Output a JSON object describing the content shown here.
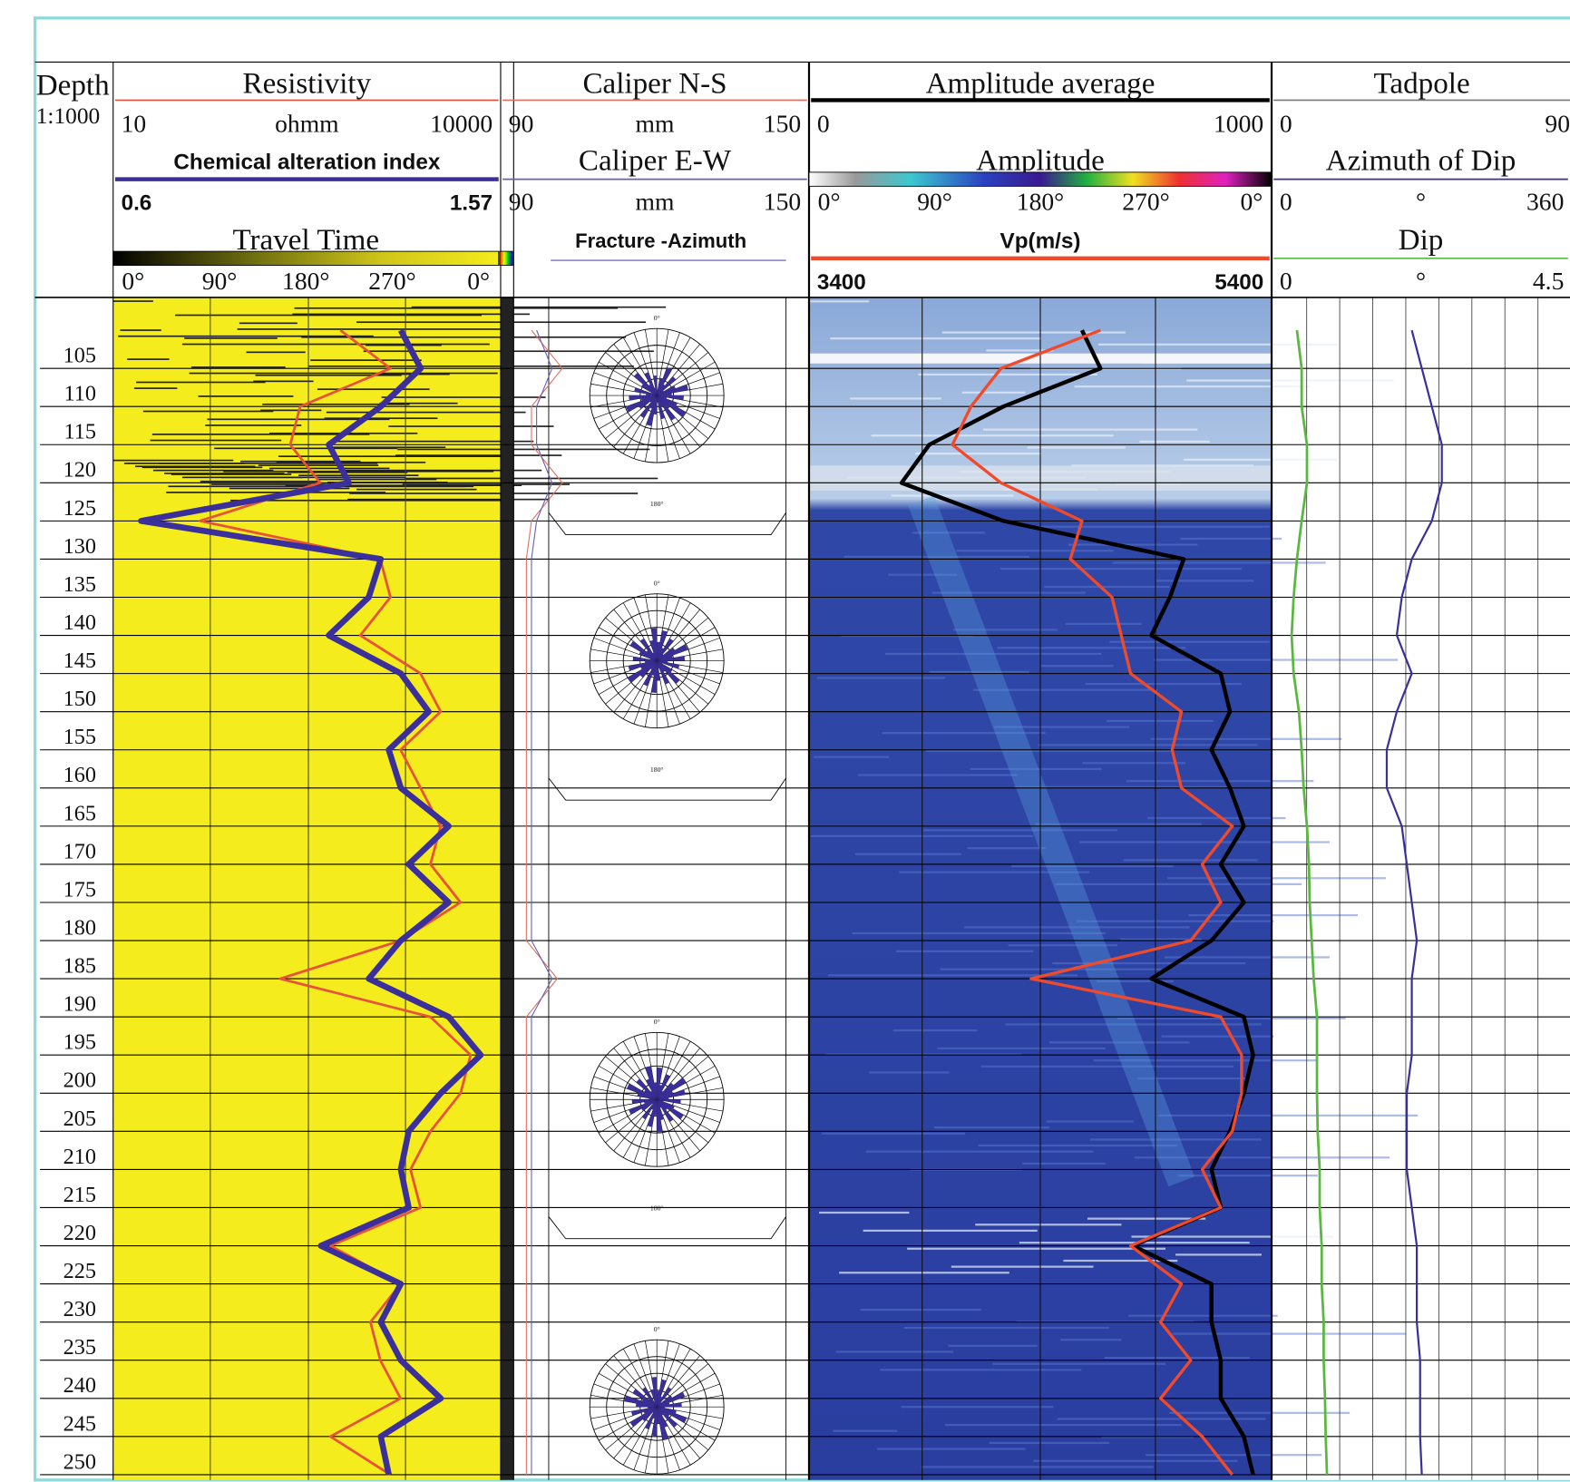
{
  "chart_data": {
    "type": "well_log",
    "depth": {
      "title": "Depth",
      "scale": "1:1000",
      "ylim": [
        95.7,
        250.7
      ],
      "yticks": [
        105,
        110,
        115,
        120,
        125,
        130,
        135,
        140,
        145,
        150,
        155,
        160,
        165,
        170,
        175,
        180,
        185,
        190,
        195,
        200,
        205,
        210,
        215,
        220,
        225,
        230,
        235,
        240,
        245,
        250
      ]
    },
    "depths": [
      100,
      105,
      110,
      115,
      120,
      125,
      130,
      135,
      140,
      145,
      150,
      155,
      160,
      165,
      170,
      175,
      180,
      185,
      190,
      195,
      200,
      205,
      210,
      215,
      220,
      225,
      230,
      235,
      240,
      245,
      250
    ],
    "curves": [
      {
        "title": "Resistivity",
        "min": 10,
        "max": 10000,
        "unit": "ohmm",
        "log": true,
        "color": "#e8513a",
        "values": [
          575,
          1400,
          280,
          235,
          400,
          47,
          1170,
          1400,
          820,
          2400,
          3430,
          1680,
          2400,
          3430,
          2860,
          4900,
          1680,
          197,
          2860,
          5850,
          4900,
          2860,
          2005,
          2400,
          481,
          1680,
          982,
          1170,
          1680,
          481,
          1400
        ]
      },
      {
        "title": "Chemical alteration index",
        "min": 0.6,
        "max": 1.57,
        "color": "#3b2f9b",
        "values": [
          1.32,
          1.37,
          1.27,
          1.14,
          1.19,
          0.67,
          1.27,
          1.24,
          1.14,
          1.32,
          1.39,
          1.29,
          1.32,
          1.44,
          1.34,
          1.44,
          1.32,
          1.24,
          1.44,
          1.52,
          1.42,
          1.34,
          1.32,
          1.34,
          1.12,
          1.32,
          1.27,
          1.32,
          1.42,
          1.27,
          1.29
        ]
      },
      {
        "title": "Caliper N-S",
        "min": 90,
        "max": 150,
        "unit": "mm",
        "color": "#e07060",
        "values": [
          96,
          102,
          96,
          96,
          102,
          96,
          95,
          95,
          95,
          95,
          95,
          95,
          95,
          95,
          95,
          95,
          95,
          101,
          95,
          95,
          95,
          95,
          95,
          95,
          95,
          95,
          95,
          95,
          95,
          95,
          95
        ]
      },
      {
        "title": "Caliper E-W",
        "min": 90,
        "max": 150,
        "unit": "mm",
        "color": "#6a5fb0",
        "values": [
          97,
          100,
          97,
          97,
          100,
          97,
          96,
          96,
          96,
          96,
          96,
          96,
          96,
          96,
          96,
          96,
          96,
          100,
          96,
          96,
          96,
          96,
          96,
          96,
          96,
          96,
          96,
          96,
          96,
          96,
          96
        ]
      },
      {
        "title": "Amplitude average",
        "min": 0,
        "max": 1000,
        "color": "#000000",
        "values": [
          590,
          630,
          420,
          260,
          200,
          420,
          810,
          780,
          740,
          890,
          910,
          870,
          910,
          940,
          890,
          940,
          870,
          740,
          940,
          960,
          940,
          910,
          870,
          890,
          700,
          870,
          870,
          890,
          890,
          940,
          960
        ]
      },
      {
        "title": "Vp(m/s)",
        "min": 3400,
        "max": 5400,
        "color": "#f04a2a",
        "values": [
          4660,
          4230,
          4100,
          4020,
          4230,
          4580,
          4530,
          4710,
          4750,
          4790,
          5010,
          4970,
          5010,
          5230,
          5100,
          5180,
          5050,
          4360,
          5180,
          5270,
          5270,
          5230,
          5100,
          5180,
          4790,
          5010,
          4920,
          5050,
          4920,
          5100,
          5230
        ]
      },
      {
        "title": "Azimuth of Dip",
        "min": 0,
        "max": 360,
        "unit": "°",
        "color": "#3b2f9b",
        "values": [
          168,
          180,
          192,
          204,
          204,
          192,
          168,
          156,
          150,
          168,
          150,
          138,
          138,
          156,
          162,
          168,
          174,
          168,
          168,
          168,
          162,
          162,
          162,
          168,
          174,
          174,
          174,
          178,
          178,
          178,
          180
        ]
      },
      {
        "title": "Dip",
        "min": 0,
        "max": 4.5,
        "unit": "°",
        "color": "#5ab840",
        "values": [
          0.38,
          0.45,
          0.45,
          0.53,
          0.53,
          0.45,
          0.38,
          0.33,
          0.3,
          0.33,
          0.41,
          0.45,
          0.48,
          0.53,
          0.56,
          0.57,
          0.6,
          0.63,
          0.68,
          0.68,
          0.68,
          0.69,
          0.72,
          0.72,
          0.75,
          0.75,
          0.78,
          0.78,
          0.8,
          0.81,
          0.83
        ]
      }
    ],
    "images": [
      {
        "title": "Travel Time",
        "ticks": [
          "0°",
          "90°",
          "180°",
          "270°",
          "0°"
        ]
      },
      {
        "title": "Amplitude",
        "ticks": [
          "0°",
          "90°",
          "180°",
          "270°",
          "0°"
        ]
      }
    ],
    "tadpole": {
      "title": "Tadpole",
      "min": 0,
      "max": 90
    },
    "fracture": {
      "title": "Fracture -Azimuth",
      "roses": [
        {
          "north": "0°",
          "south": "180°"
        },
        {
          "north": "0°",
          "south": "180°"
        },
        {
          "north": "0°",
          "south": "180°"
        },
        {
          "north": "0°"
        }
      ]
    }
  }
}
